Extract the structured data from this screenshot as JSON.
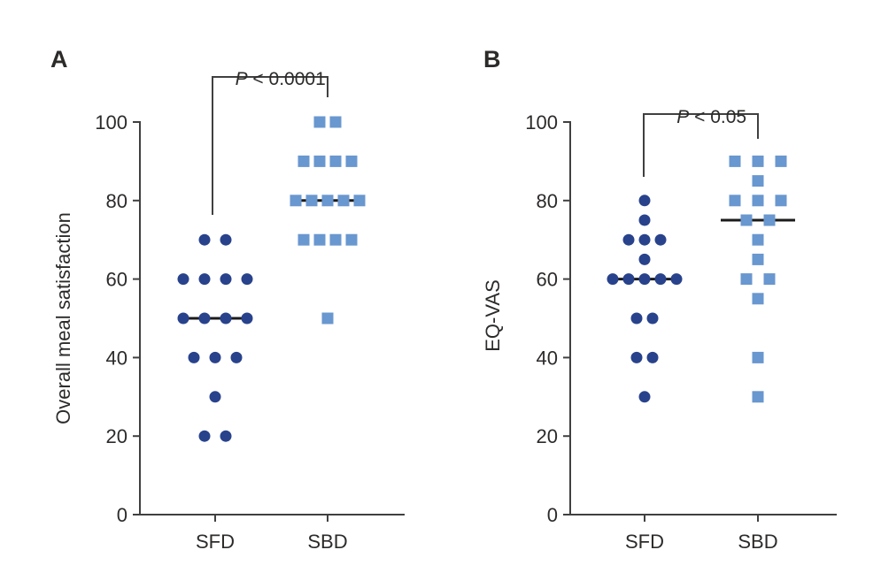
{
  "figure": {
    "background_color": "#ffffff",
    "text_color": "#2d2b2a",
    "axis_color": "#404040",
    "median_line_color": "#1b1b1b"
  },
  "chart_data": [
    {
      "type": "scatter",
      "panel_label": "A",
      "ylabel": "Overall meal satisfaction",
      "xlabel": "",
      "ylim": [
        0,
        100
      ],
      "yticks": [
        0,
        20,
        40,
        60,
        80,
        100
      ],
      "categories": [
        "SFD",
        "SBD"
      ],
      "grid": false,
      "legend": "none",
      "significance": {
        "p_symbol": "P",
        "comparison": " < 0.0001"
      },
      "series": [
        {
          "name": "SFD",
          "marker": "circle",
          "color": "#28428c",
          "median": 50,
          "rows": [
            {
              "value": 70,
              "count": 2
            },
            {
              "value": 60,
              "count": 4
            },
            {
              "value": 50,
              "count": 4
            },
            {
              "value": 40,
              "count": 3
            },
            {
              "value": 30,
              "count": 1
            },
            {
              "value": 20,
              "count": 2
            }
          ]
        },
        {
          "name": "SBD",
          "marker": "square",
          "color": "#6997cf",
          "median": 80,
          "rows": [
            {
              "value": 100,
              "count": 2
            },
            {
              "value": 90,
              "count": 4
            },
            {
              "value": 80,
              "count": 5
            },
            {
              "value": 70,
              "count": 4
            },
            {
              "value": 50,
              "count": 1
            }
          ]
        }
      ]
    },
    {
      "type": "scatter",
      "panel_label": "B",
      "ylabel": "EQ-VAS",
      "xlabel": "",
      "ylim": [
        0,
        100
      ],
      "yticks": [
        0,
        20,
        40,
        60,
        80,
        100
      ],
      "categories": [
        "SFD",
        "SBD"
      ],
      "grid": false,
      "legend": "none",
      "significance": {
        "p_symbol": "P",
        "comparison": " < 0.05"
      },
      "series": [
        {
          "name": "SFD",
          "marker": "circle",
          "color": "#28428c",
          "median": 60,
          "rows": [
            {
              "value": 80,
              "count": 1
            },
            {
              "value": 75,
              "count": 1
            },
            {
              "value": 70,
              "count": 3
            },
            {
              "value": 65,
              "count": 1
            },
            {
              "value": 60,
              "count": 5
            },
            {
              "value": 50,
              "count": 2
            },
            {
              "value": 40,
              "count": 2
            },
            {
              "value": 30,
              "count": 1
            }
          ]
        },
        {
          "name": "SBD",
          "marker": "square",
          "color": "#6997cf",
          "median": 75,
          "rows": [
            {
              "value": 90,
              "count": 3
            },
            {
              "value": 85,
              "count": 1
            },
            {
              "value": 80,
              "count": 3
            },
            {
              "value": 75,
              "count": 2
            },
            {
              "value": 70,
              "count": 1
            },
            {
              "value": 65,
              "count": 1
            },
            {
              "value": 60,
              "count": 2
            },
            {
              "value": 55,
              "count": 1
            },
            {
              "value": 40,
              "count": 1
            },
            {
              "value": 30,
              "count": 1
            }
          ]
        }
      ]
    }
  ]
}
